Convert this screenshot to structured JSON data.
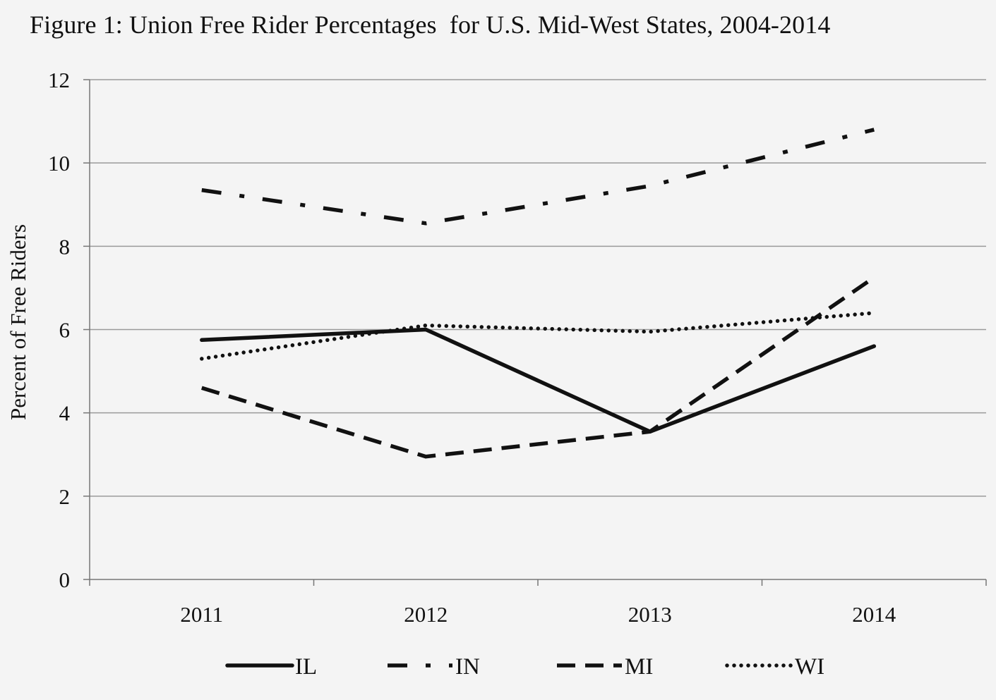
{
  "chart_data": {
    "type": "line",
    "title": "Figure 1: Union Free Rider Percentages  for U.S. Mid-West States, 2004-2014",
    "xlabel": "",
    "ylabel": "Percent of Free Riders",
    "categories": [
      "2011",
      "2012",
      "2013",
      "2014"
    ],
    "ylim": [
      0,
      12
    ],
    "yticks": [
      0,
      2,
      4,
      6,
      8,
      10,
      12
    ],
    "grid": true,
    "legend": "bottom",
    "series": [
      {
        "name": "IL",
        "style": "solid",
        "values": [
          5.75,
          6.0,
          3.55,
          5.6
        ]
      },
      {
        "name": "IN",
        "style": "dash-dot",
        "values": [
          9.35,
          8.55,
          9.45,
          10.8
        ]
      },
      {
        "name": "MI",
        "style": "dashed",
        "values": [
          4.6,
          2.95,
          3.55,
          7.25
        ]
      },
      {
        "name": "WI",
        "style": "dotted",
        "values": [
          5.3,
          6.1,
          5.95,
          6.4
        ]
      }
    ],
    "colors": {
      "line": "#111111",
      "grid": "#9a9a9a",
      "axis": "#777777",
      "background": "#f4f4f4"
    }
  }
}
